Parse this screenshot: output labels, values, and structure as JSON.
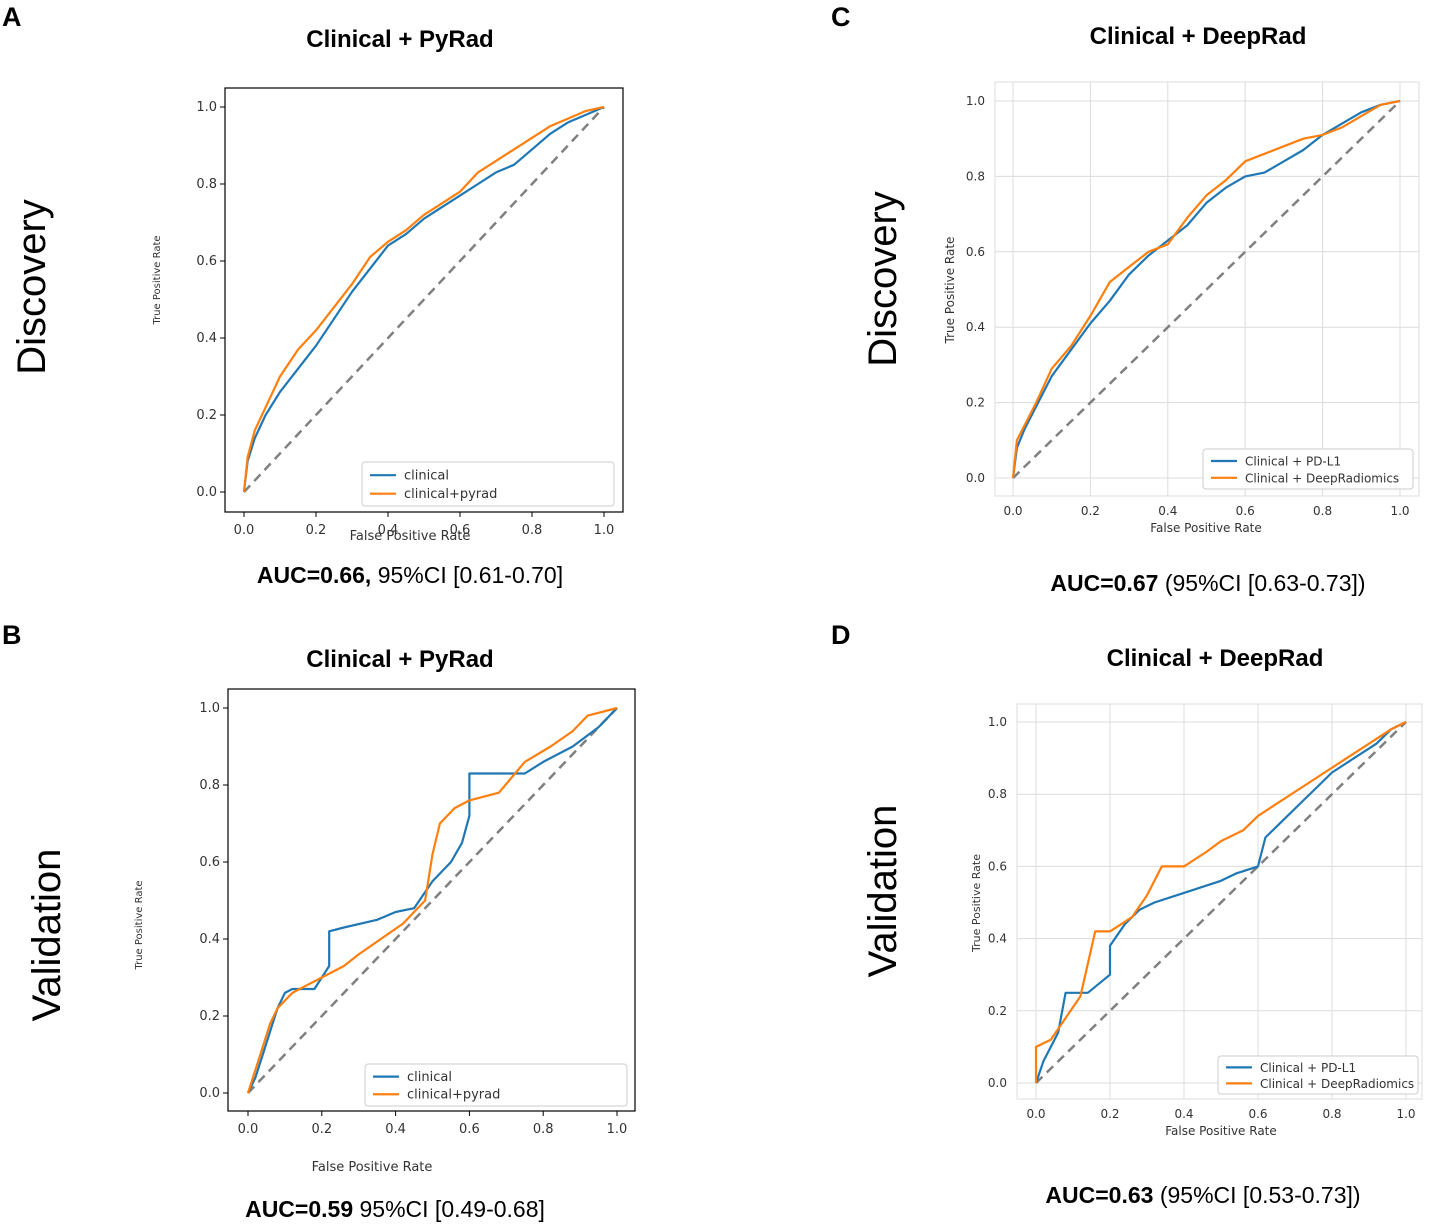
{
  "panels": {
    "A": {
      "letter": "A",
      "row_label": "Discovery",
      "auc_bold": "AUC=0.66,",
      "auc_rest": " 95%CI [0.61-0.70]"
    },
    "B": {
      "letter": "B",
      "row_label": "Validation",
      "auc_bold": "AUC=0.59",
      "auc_rest": " 95%CI [0.49-0.68]"
    },
    "C": {
      "letter": "C",
      "row_label": "Discovery",
      "auc_bold": "AUC=0.67",
      "auc_rest": " (95%CI [0.63-0.73])"
    },
    "D": {
      "letter": "D",
      "row_label": "Validation",
      "auc_bold": "AUC=0.63",
      "auc_rest": " (95%CI [0.53-0.73])"
    }
  },
  "colors": {
    "series1": "#1f77b4",
    "series2": "#ff7f0e",
    "diagonal": "#808080"
  },
  "chart_data": [
    {
      "id": "A",
      "type": "line",
      "title": "Clinical + PyRad",
      "xlabel": "False Positive Rate",
      "ylabel": "True Positive Rate",
      "xlim": [
        0,
        1
      ],
      "ylim": [
        0,
        1
      ],
      "grid": false,
      "legend": "bottom-right",
      "ticks": [
        "0.0",
        "0.2",
        "0.4",
        "0.6",
        "0.8",
        "1.0"
      ],
      "series": [
        {
          "name": "clinical",
          "x": [
            0,
            0.01,
            0.03,
            0.06,
            0.1,
            0.15,
            0.2,
            0.25,
            0.3,
            0.35,
            0.4,
            0.45,
            0.5,
            0.55,
            0.6,
            0.65,
            0.7,
            0.75,
            0.8,
            0.85,
            0.9,
            0.95,
            1.0
          ],
          "y": [
            0,
            0.08,
            0.14,
            0.2,
            0.26,
            0.32,
            0.38,
            0.45,
            0.52,
            0.58,
            0.64,
            0.67,
            0.71,
            0.74,
            0.77,
            0.8,
            0.83,
            0.85,
            0.89,
            0.93,
            0.96,
            0.98,
            1.0
          ]
        },
        {
          "name": "clinical+pyrad",
          "x": [
            0,
            0.01,
            0.03,
            0.06,
            0.1,
            0.15,
            0.2,
            0.25,
            0.3,
            0.35,
            0.4,
            0.45,
            0.5,
            0.55,
            0.6,
            0.65,
            0.7,
            0.75,
            0.8,
            0.85,
            0.9,
            0.95,
            1.0
          ],
          "y": [
            0,
            0.09,
            0.16,
            0.22,
            0.3,
            0.37,
            0.42,
            0.48,
            0.54,
            0.61,
            0.65,
            0.68,
            0.72,
            0.75,
            0.78,
            0.83,
            0.86,
            0.89,
            0.92,
            0.95,
            0.97,
            0.99,
            1.0
          ]
        }
      ]
    },
    {
      "id": "B",
      "type": "line",
      "title": "Clinical + PyRad",
      "xlabel": "False Positive Rate",
      "ylabel": "True Positive Rate",
      "xlim": [
        0,
        1
      ],
      "ylim": [
        0,
        1
      ],
      "grid": false,
      "legend": "bottom-right",
      "ticks": [
        "0.0",
        "0.2",
        "0.4",
        "0.6",
        "0.8",
        "1.0"
      ],
      "series": [
        {
          "name": "clinical",
          "x": [
            0,
            0.02,
            0.04,
            0.06,
            0.08,
            0.1,
            0.12,
            0.18,
            0.22,
            0.22,
            0.26,
            0.35,
            0.4,
            0.45,
            0.5,
            0.55,
            0.58,
            0.6,
            0.6,
            0.75,
            0.8,
            0.88,
            0.95,
            1.0
          ],
          "y": [
            0,
            0.04,
            0.1,
            0.16,
            0.22,
            0.26,
            0.27,
            0.27,
            0.33,
            0.42,
            0.43,
            0.45,
            0.47,
            0.48,
            0.55,
            0.6,
            0.65,
            0.72,
            0.83,
            0.83,
            0.86,
            0.9,
            0.95,
            1.0
          ]
        },
        {
          "name": "clinical+pyrad",
          "x": [
            0,
            0.02,
            0.04,
            0.06,
            0.08,
            0.12,
            0.16,
            0.2,
            0.26,
            0.3,
            0.36,
            0.42,
            0.48,
            0.5,
            0.52,
            0.56,
            0.6,
            0.68,
            0.75,
            0.82,
            0.88,
            0.92,
            1.0
          ],
          "y": [
            0,
            0.06,
            0.12,
            0.18,
            0.22,
            0.26,
            0.28,
            0.3,
            0.33,
            0.36,
            0.4,
            0.44,
            0.5,
            0.62,
            0.7,
            0.74,
            0.76,
            0.78,
            0.86,
            0.9,
            0.94,
            0.98,
            1.0
          ]
        }
      ]
    },
    {
      "id": "C",
      "type": "line",
      "title": "Clinical + DeepRad",
      "xlabel": "False Positive Rate",
      "ylabel": "True Positive Rate",
      "xlim": [
        0,
        1
      ],
      "ylim": [
        0,
        1
      ],
      "grid": true,
      "legend": "bottom-right",
      "ticks": [
        "0.0",
        "0.2",
        "0.4",
        "0.6",
        "0.8",
        "1.0"
      ],
      "series": [
        {
          "name": "Clinical + PD-L1",
          "x": [
            0,
            0.01,
            0.03,
            0.06,
            0.1,
            0.15,
            0.2,
            0.25,
            0.3,
            0.35,
            0.4,
            0.45,
            0.5,
            0.55,
            0.6,
            0.65,
            0.7,
            0.75,
            0.8,
            0.85,
            0.9,
            0.95,
            1.0
          ],
          "y": [
            0,
            0.08,
            0.13,
            0.19,
            0.27,
            0.34,
            0.41,
            0.47,
            0.54,
            0.59,
            0.63,
            0.67,
            0.73,
            0.77,
            0.8,
            0.81,
            0.84,
            0.87,
            0.91,
            0.94,
            0.97,
            0.99,
            1.0
          ]
        },
        {
          "name": "Clinical + DeepRadiomics",
          "x": [
            0,
            0.01,
            0.03,
            0.06,
            0.1,
            0.15,
            0.2,
            0.25,
            0.3,
            0.35,
            0.4,
            0.45,
            0.5,
            0.55,
            0.6,
            0.65,
            0.7,
            0.75,
            0.8,
            0.85,
            0.9,
            0.95,
            1.0
          ],
          "y": [
            0,
            0.1,
            0.14,
            0.2,
            0.29,
            0.35,
            0.43,
            0.52,
            0.56,
            0.6,
            0.62,
            0.69,
            0.75,
            0.79,
            0.84,
            0.86,
            0.88,
            0.9,
            0.91,
            0.93,
            0.96,
            0.99,
            1.0
          ]
        }
      ]
    },
    {
      "id": "D",
      "type": "line",
      "title": "Clinical + DeepRad",
      "xlabel": "False Positive Rate",
      "ylabel": "True Positive Rate",
      "xlim": [
        0,
        1
      ],
      "ylim": [
        0,
        1
      ],
      "grid": true,
      "legend": "bottom-right",
      "ticks": [
        "0.0",
        "0.2",
        "0.4",
        "0.6",
        "0.8",
        "1.0"
      ],
      "series": [
        {
          "name": "Clinical + PD-L1",
          "x": [
            0,
            0.02,
            0.04,
            0.06,
            0.08,
            0.14,
            0.2,
            0.2,
            0.24,
            0.28,
            0.32,
            0.38,
            0.44,
            0.5,
            0.54,
            0.6,
            0.62,
            0.66,
            0.72,
            0.76,
            0.8,
            0.86,
            0.92,
            0.96,
            1.0
          ],
          "y": [
            0,
            0.06,
            0.1,
            0.14,
            0.25,
            0.25,
            0.3,
            0.38,
            0.44,
            0.48,
            0.5,
            0.52,
            0.54,
            0.56,
            0.58,
            0.6,
            0.68,
            0.72,
            0.78,
            0.82,
            0.86,
            0.9,
            0.94,
            0.98,
            1.0
          ]
        },
        {
          "name": "Clinical + DeepRadiomics",
          "x": [
            0,
            0.0,
            0.04,
            0.08,
            0.12,
            0.16,
            0.2,
            0.26,
            0.3,
            0.34,
            0.4,
            0.46,
            0.5,
            0.56,
            0.6,
            0.66,
            0.72,
            0.78,
            0.84,
            0.9,
            0.96,
            1.0
          ],
          "y": [
            0,
            0.1,
            0.12,
            0.18,
            0.24,
            0.42,
            0.42,
            0.46,
            0.52,
            0.6,
            0.6,
            0.64,
            0.67,
            0.7,
            0.74,
            0.78,
            0.82,
            0.86,
            0.9,
            0.94,
            0.98,
            1.0
          ]
        }
      ]
    }
  ]
}
